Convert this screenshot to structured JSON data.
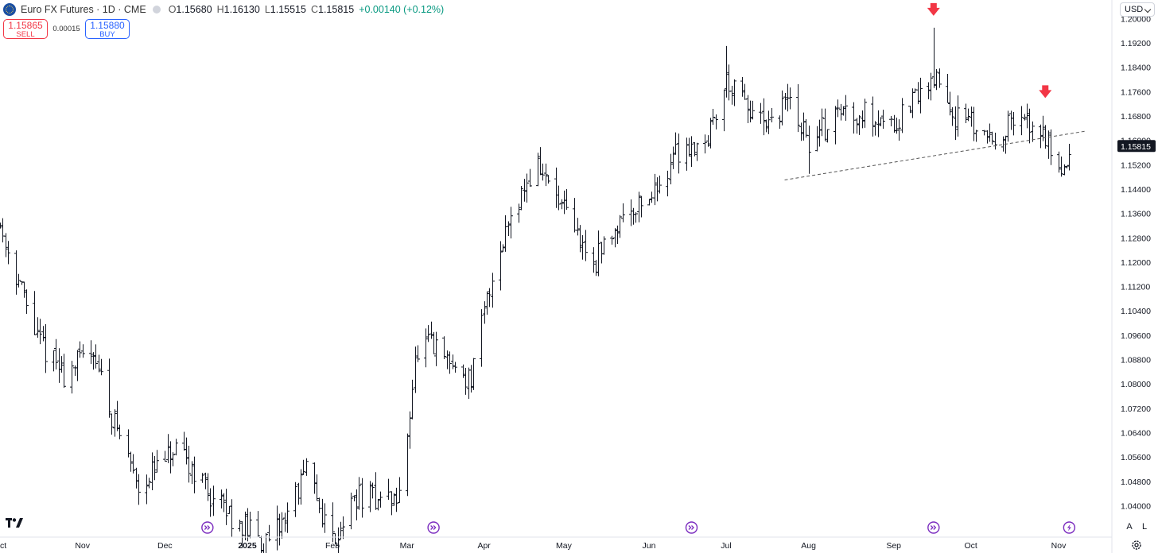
{
  "header": {
    "title": "Euro FX Futures · 1D · CME",
    "open_label": "O",
    "open": "1.15680",
    "high_label": "H",
    "high": "1.16130",
    "low_label": "L",
    "low": "1.15515",
    "close_label": "C",
    "close": "1.15815",
    "change": "+0.00140 (+0.12%)",
    "change_color": "#089981"
  },
  "trade": {
    "sell_price": "1.15865",
    "sell_label": "SELL",
    "spread": "0.00015",
    "buy_price": "1.15880",
    "buy_label": "BUY"
  },
  "currency": "USD",
  "price_badge": "1.15815",
  "scale_buttons": {
    "auto": "A",
    "log": "L"
  },
  "icons": {
    "logo": "tradingview-logo",
    "events": "event-marker-icon",
    "settings": "gear-icon",
    "lightning": "lightning-icon"
  },
  "chart_data": {
    "type": "ohlc-bar",
    "y_ticks": [
      "1.20000",
      "1.19200",
      "1.18400",
      "1.17600",
      "1.16800",
      "1.16000",
      "1.15200",
      "1.14400",
      "1.13600",
      "1.12800",
      "1.12000",
      "1.11200",
      "1.10400",
      "1.09600",
      "1.08800",
      "1.08000",
      "1.07200",
      "1.06400",
      "1.05600",
      "1.04800",
      "1.04000"
    ],
    "ylim": [
      1.0375,
      1.2035
    ],
    "x_labels": [
      {
        "label": "Oct",
        "date": "2024-10-01"
      },
      {
        "label": "Nov",
        "date": "2024-11-01"
      },
      {
        "label": "Dec",
        "date": "2024-12-02"
      },
      {
        "label": "2025",
        "date": "2025-01-02"
      },
      {
        "label": "Feb",
        "date": "2025-02-03"
      },
      {
        "label": "Mar",
        "date": "2025-03-03"
      },
      {
        "label": "Apr",
        "date": "2025-04-01"
      },
      {
        "label": "May",
        "date": "2025-05-01"
      },
      {
        "label": "Jun",
        "date": "2025-06-02"
      },
      {
        "label": "Jul",
        "date": "2025-07-01"
      },
      {
        "label": "Aug",
        "date": "2025-08-01"
      },
      {
        "label": "Sep",
        "date": "2025-09-02"
      },
      {
        "label": "Oct",
        "date": "2025-10-01"
      },
      {
        "label": "Nov",
        "date": "2025-11-03"
      }
    ],
    "closes": [
      {
        "date": "2024-10-01",
        "value": 1.132
      },
      {
        "date": "2024-10-15",
        "value": 1.095
      },
      {
        "date": "2024-10-25",
        "value": 1.083
      },
      {
        "date": "2024-11-05",
        "value": 1.092
      },
      {
        "date": "2024-11-10",
        "value": 1.0745
      },
      {
        "date": "2024-11-22",
        "value": 1.047
      },
      {
        "date": "2024-12-05",
        "value": 1.057
      },
      {
        "date": "2024-12-13",
        "value": 1.052
      },
      {
        "date": "2024-12-20",
        "value": 1.042
      },
      {
        "date": "2025-01-10",
        "value": 1.026
      },
      {
        "date": "2025-01-24",
        "value": 1.051
      },
      {
        "date": "2025-02-03",
        "value": 1.029
      },
      {
        "date": "2025-02-12",
        "value": 1.043
      },
      {
        "date": "2025-02-28",
        "value": 1.042
      },
      {
        "date": "2025-03-06",
        "value": 1.087
      },
      {
        "date": "2025-03-11",
        "value": 1.093
      },
      {
        "date": "2025-03-27",
        "value": 1.081
      },
      {
        "date": "2025-04-03",
        "value": 1.112
      },
      {
        "date": "2025-04-11",
        "value": 1.137
      },
      {
        "date": "2025-04-21",
        "value": 1.152
      },
      {
        "date": "2025-05-12",
        "value": 1.119
      },
      {
        "date": "2025-05-23",
        "value": 1.136
      },
      {
        "date": "2025-06-04",
        "value": 1.143
      },
      {
        "date": "2025-06-12",
        "value": 1.156
      },
      {
        "date": "2025-06-24",
        "value": 1.161
      },
      {
        "date": "2025-07-01",
        "value": 1.18
      },
      {
        "date": "2025-07-10",
        "value": 1.169
      },
      {
        "date": "2025-07-17",
        "value": 1.163
      },
      {
        "date": "2025-07-24",
        "value": 1.174
      },
      {
        "date": "2025-08-01",
        "value": 1.159
      },
      {
        "date": "2025-08-13",
        "value": 1.17
      },
      {
        "date": "2025-08-22",
        "value": 1.169
      },
      {
        "date": "2025-09-03",
        "value": 1.166
      },
      {
        "date": "2025-09-17",
        "value": 1.181
      },
      {
        "date": "2025-09-25",
        "value": 1.168
      },
      {
        "date": "2025-10-09",
        "value": 1.161
      },
      {
        "date": "2025-10-17",
        "value": 1.166
      },
      {
        "date": "2025-10-27",
        "value": 1.164
      },
      {
        "date": "2025-11-05",
        "value": 1.15
      },
      {
        "date": "2025-11-07",
        "value": 1.156
      }
    ],
    "extremes": [
      {
        "date": "2025-01-13",
        "value": 1.04
      },
      {
        "date": "2025-09-17",
        "value": 1.197
      },
      {
        "date": "2025-07-01",
        "value": 1.191
      },
      {
        "date": "2025-08-01",
        "value": 1.149
      }
    ],
    "annotations": [
      {
        "type": "arrow-down",
        "date": "2025-09-17",
        "value": 1.203,
        "color": "#f23645"
      },
      {
        "type": "arrow-down",
        "date": "2025-10-29",
        "value": 1.176,
        "color": "#f23645"
      },
      {
        "type": "trendline-dashed",
        "from": {
          "date": "2025-07-23",
          "value": 1.147
        },
        "to": {
          "date": "2025-11-13",
          "value": 1.163
        }
      }
    ],
    "event_marker_dates": [
      "2024-12-18",
      "2025-03-13",
      "2025-06-18",
      "2025-09-17"
    ],
    "lightning_marker_date": "2025-11-07",
    "grid": false
  }
}
